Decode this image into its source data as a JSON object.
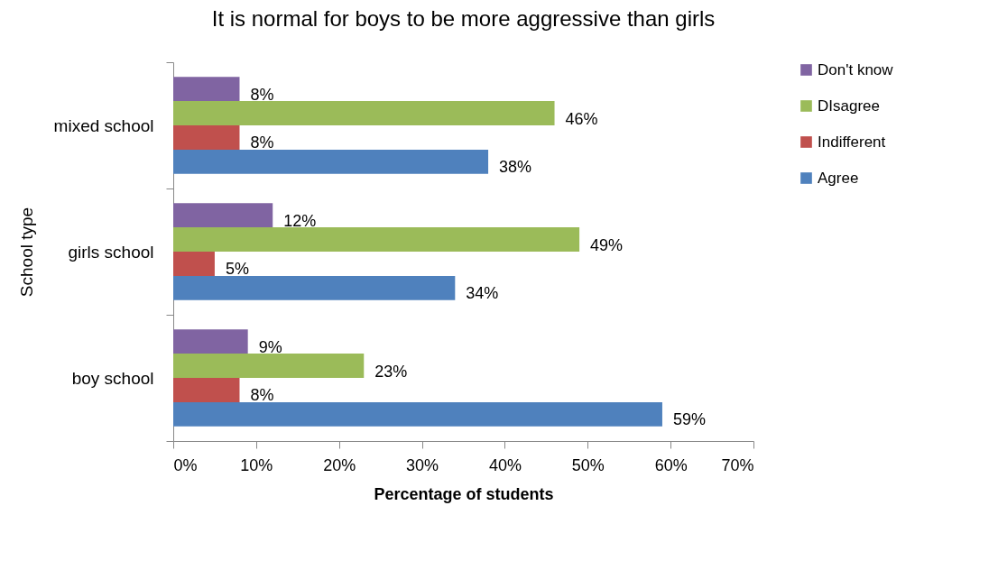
{
  "chart_data": {
    "type": "bar",
    "orientation": "horizontal",
    "title": "It is normal for boys to be more aggressive than girls",
    "xlabel": "Percentage of students",
    "ylabel": "School type",
    "categories": [
      "mixed school",
      "girls school",
      "boy school"
    ],
    "series": [
      {
        "name": "Agree",
        "color": "#4f81bd",
        "values": [
          38,
          34,
          59
        ],
        "value_labels": [
          "38%",
          "34%",
          "59%"
        ]
      },
      {
        "name": "Indifferent",
        "color": "#c0504d",
        "values": [
          8,
          5,
          8
        ],
        "value_labels": [
          "8%",
          "5%",
          "8%"
        ]
      },
      {
        "name": "DIsagree",
        "color": "#9bbb59",
        "values": [
          46,
          49,
          23
        ],
        "value_labels": [
          "46%",
          "49%",
          "23%"
        ]
      },
      {
        "name": "Don't know",
        "color": "#8064a2",
        "values": [
          8,
          12,
          9
        ],
        "value_labels": [
          "8%",
          "12%",
          "9%"
        ]
      }
    ],
    "xlim": [
      0,
      70
    ],
    "xticks": [
      {
        "value": 0,
        "label": "0%"
      },
      {
        "value": 10,
        "label": "10%"
      },
      {
        "value": 20,
        "label": "20%"
      },
      {
        "value": 30,
        "label": "30%"
      },
      {
        "value": 40,
        "label": "40%"
      },
      {
        "value": 50,
        "label": "50%"
      },
      {
        "value": 60,
        "label": "60%"
      },
      {
        "value": 70,
        "label": "70%"
      }
    ],
    "grid": false,
    "legend": "right"
  }
}
